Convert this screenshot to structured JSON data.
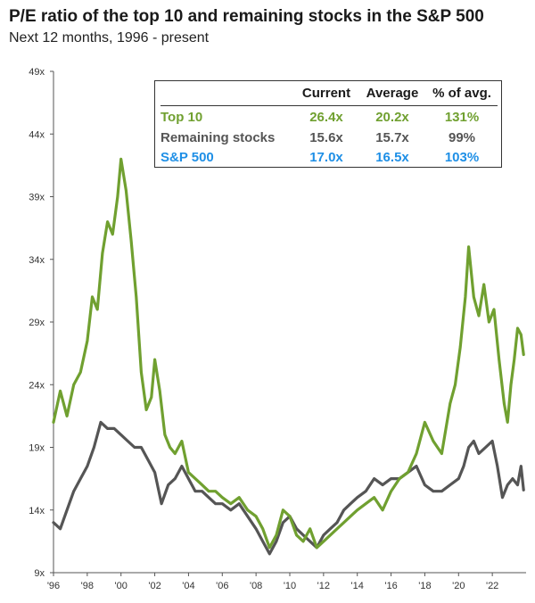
{
  "title": "P/E ratio of the top 10 and remaining stocks in the S&P 500",
  "subtitle": "Next 12 months, 1996 - present",
  "legend": {
    "headers": [
      "Current",
      "Average",
      "% of avg."
    ],
    "rows": [
      {
        "name": "Top 10",
        "current": "26.4x",
        "average": "20.2x",
        "pct": "131%",
        "color": "#70a030"
      },
      {
        "name": "Remaining stocks",
        "current": "15.6x",
        "average": "15.7x",
        "pct": "99%",
        "color": "#555555"
      },
      {
        "name": "S&P 500",
        "current": "17.0x",
        "average": "16.5x",
        "pct": "103%",
        "color": "#1e8fe6"
      }
    ]
  },
  "chart_data": {
    "type": "line",
    "title": "P/E ratio of the top 10 and remaining stocks in the S&P 500",
    "subtitle": "Next 12 months, 1996 - present",
    "xlabel": "",
    "ylabel": "",
    "xlim": [
      1996,
      2024
    ],
    "ylim": [
      9,
      49
    ],
    "yticks": [
      9,
      14,
      19,
      24,
      29,
      34,
      39,
      44,
      49
    ],
    "ytick_labels": [
      "9x",
      "14x",
      "19x",
      "24x",
      "29x",
      "34x",
      "39x",
      "44x",
      "49x"
    ],
    "xticks": [
      1996,
      1998,
      2000,
      2002,
      2004,
      2006,
      2008,
      2010,
      2012,
      2014,
      2016,
      2018,
      2020,
      2022
    ],
    "xtick_labels": [
      "'96",
      "'98",
      "'00",
      "'02",
      "'04",
      "'06",
      "'08",
      "'10",
      "'12",
      "'14",
      "'16",
      "'18",
      "'20",
      "'22"
    ],
    "series": [
      {
        "name": "Top 10",
        "color": "#70a030",
        "x": [
          1996.0,
          1996.4,
          1996.8,
          1997.2,
          1997.6,
          1998.0,
          1998.3,
          1998.6,
          1998.9,
          1999.2,
          1999.5,
          1999.8,
          2000.0,
          2000.3,
          2000.6,
          2000.9,
          2001.2,
          2001.5,
          2001.8,
          2002.0,
          2002.3,
          2002.6,
          2002.9,
          2003.2,
          2003.6,
          2004.0,
          2004.4,
          2004.8,
          2005.2,
          2005.6,
          2006.0,
          2006.5,
          2007.0,
          2007.5,
          2008.0,
          2008.4,
          2008.8,
          2009.2,
          2009.6,
          2010.0,
          2010.4,
          2010.8,
          2011.2,
          2011.6,
          2012.0,
          2012.4,
          2012.8,
          2013.2,
          2013.6,
          2014.0,
          2014.5,
          2015.0,
          2015.5,
          2016.0,
          2016.5,
          2017.0,
          2017.5,
          2018.0,
          2018.5,
          2019.0,
          2019.5,
          2019.8,
          2020.1,
          2020.4,
          2020.6,
          2020.9,
          2021.2,
          2021.5,
          2021.8,
          2022.1,
          2022.4,
          2022.7,
          2022.9,
          2023.1,
          2023.3,
          2023.5,
          2023.7,
          2023.85
        ],
        "values": [
          21.0,
          23.5,
          21.5,
          24.0,
          25.0,
          27.5,
          31.0,
          30.0,
          34.5,
          37.0,
          36.0,
          39.0,
          42.0,
          39.5,
          35.5,
          31.0,
          25.0,
          22.0,
          23.0,
          26.0,
          23.5,
          20.0,
          19.0,
          18.5,
          19.5,
          17.0,
          16.5,
          16.0,
          15.5,
          15.5,
          15.0,
          14.5,
          15.0,
          14.0,
          13.5,
          12.5,
          11.0,
          12.0,
          14.0,
          13.5,
          12.0,
          11.5,
          12.5,
          11.0,
          11.5,
          12.0,
          12.5,
          13.0,
          13.5,
          14.0,
          14.5,
          15.0,
          14.0,
          15.5,
          16.5,
          17.0,
          18.5,
          21.0,
          19.5,
          18.5,
          22.5,
          24.0,
          27.0,
          31.0,
          35.0,
          31.0,
          29.5,
          32.0,
          29.0,
          30.0,
          26.0,
          22.5,
          21.0,
          24.0,
          26.0,
          28.5,
          28.0,
          26.4
        ]
      },
      {
        "name": "Remaining stocks",
        "color": "#555555",
        "x": [
          1996.0,
          1996.4,
          1996.8,
          1997.2,
          1997.6,
          1998.0,
          1998.4,
          1998.8,
          1999.2,
          1999.6,
          2000.0,
          2000.4,
          2000.8,
          2001.2,
          2001.6,
          2002.0,
          2002.4,
          2002.8,
          2003.2,
          2003.6,
          2004.0,
          2004.4,
          2004.8,
          2005.2,
          2005.6,
          2006.0,
          2006.5,
          2007.0,
          2007.5,
          2008.0,
          2008.4,
          2008.8,
          2009.2,
          2009.6,
          2010.0,
          2010.4,
          2010.8,
          2011.2,
          2011.6,
          2012.0,
          2012.4,
          2012.8,
          2013.2,
          2013.6,
          2014.0,
          2014.5,
          2015.0,
          2015.5,
          2016.0,
          2016.5,
          2017.0,
          2017.5,
          2018.0,
          2018.5,
          2019.0,
          2019.5,
          2020.0,
          2020.3,
          2020.6,
          2020.9,
          2021.2,
          2021.6,
          2022.0,
          2022.3,
          2022.6,
          2022.9,
          2023.2,
          2023.5,
          2023.7,
          2023.85
        ],
        "values": [
          13.0,
          12.5,
          14.0,
          15.5,
          16.5,
          17.5,
          19.0,
          21.0,
          20.5,
          20.5,
          20.0,
          19.5,
          19.0,
          19.0,
          18.0,
          17.0,
          14.5,
          16.0,
          16.5,
          17.5,
          16.5,
          15.5,
          15.5,
          15.0,
          14.5,
          14.5,
          14.0,
          14.5,
          13.5,
          12.5,
          11.5,
          10.5,
          11.5,
          13.0,
          13.5,
          12.5,
          12.0,
          11.5,
          11.0,
          12.0,
          12.5,
          13.0,
          14.0,
          14.5,
          15.0,
          15.5,
          16.5,
          16.0,
          16.5,
          16.5,
          17.0,
          17.5,
          16.0,
          15.5,
          15.5,
          16.0,
          16.5,
          17.5,
          19.0,
          19.5,
          18.5,
          19.0,
          19.5,
          17.5,
          15.0,
          16.0,
          16.5,
          16.0,
          17.5,
          15.6
        ]
      }
    ]
  }
}
